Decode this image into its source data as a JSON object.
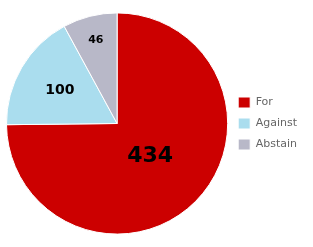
{
  "chart_data": {
    "type": "pie",
    "categories": [
      "For",
      "Against",
      "Abstain"
    ],
    "values": [
      434,
      100,
      46
    ],
    "colors": [
      "#cc0000",
      "#aaddee",
      "#b8b8c8"
    ],
    "data_labels": true,
    "legend": "right"
  }
}
